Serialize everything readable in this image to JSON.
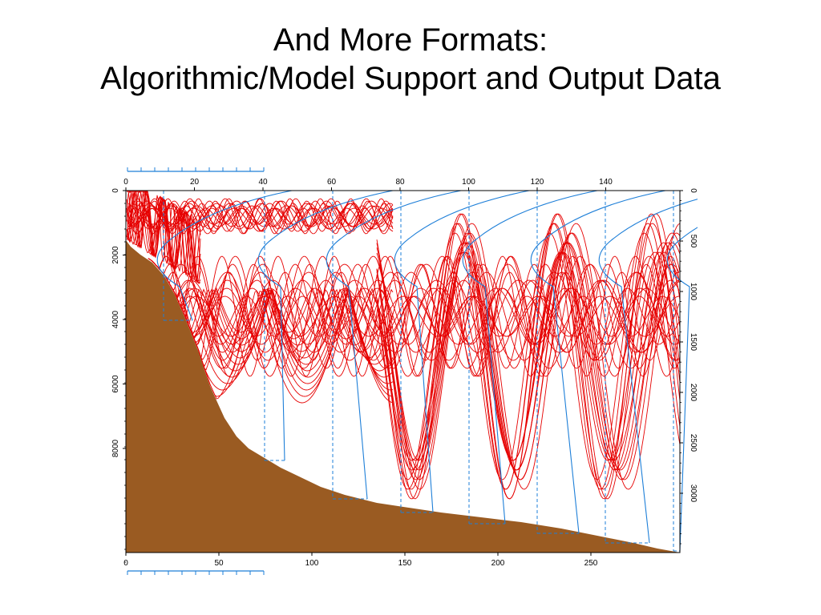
{
  "slide": {
    "title_line1": "And More Formats:",
    "title_line2": "Algorithmic/Model Support and Output Data"
  },
  "figure": {
    "top_axis_ticks": [
      "0",
      "20",
      "40",
      "60",
      "80",
      "100",
      "120",
      "140"
    ],
    "bottom_axis_ticks": [
      "0",
      "50",
      "100",
      "150",
      "200",
      "250"
    ],
    "left_axis_ticks": [
      "0",
      "2000",
      "4000",
      "6000",
      "8000"
    ],
    "right_axis_ticks": [
      "0",
      "500",
      "1000",
      "1500",
      "2000",
      "2500",
      "3000"
    ],
    "colors": {
      "seafloor": "#9a5b22",
      "rays": "#e60000",
      "sound_speed_profiles": "#1e7fd8"
    }
  }
}
